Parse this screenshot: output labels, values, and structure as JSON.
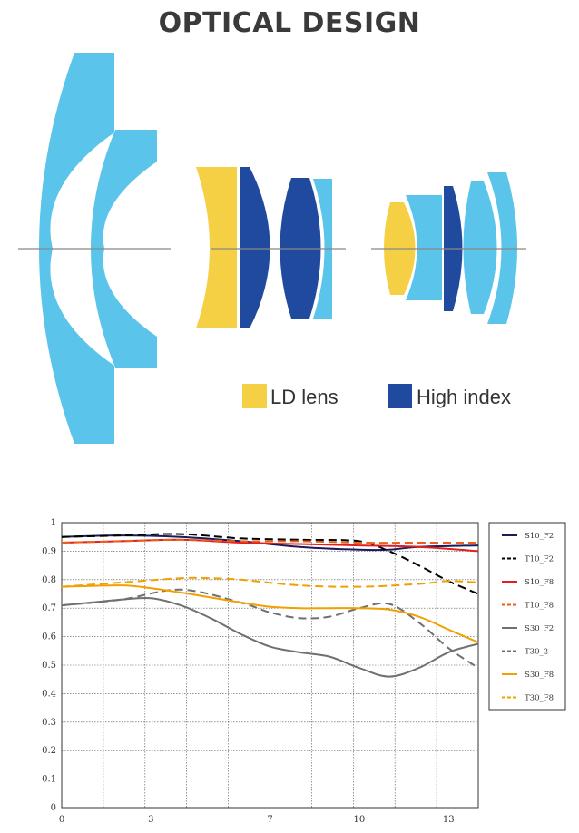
{
  "title": "OPTICAL DESIGN",
  "colors": {
    "light_blue": "#5BC4EA",
    "dark_blue": "#1F4A9E",
    "yellow": "#F5D044",
    "axis": "#888888"
  },
  "lens_legend": [
    {
      "label": "LD lens",
      "color": "#F5D044"
    },
    {
      "label": "High index",
      "color": "#1F4A9E"
    }
  ],
  "chart_data": {
    "type": "line",
    "y_ticks": [
      "0",
      "0.1",
      "0.2",
      "0.3",
      "0.4",
      "0.5",
      "0.6",
      "0.7",
      "0.8",
      "0.9",
      "1"
    ],
    "x_ticks": [
      "0",
      "3",
      "7",
      "10",
      "13"
    ],
    "ylim": [
      0,
      1
    ],
    "xlim": [
      0,
      14
    ],
    "grid": true,
    "legend_position": "right",
    "series": [
      {
        "name": "S10_F2",
        "color": "#1a1a5c",
        "dash": false,
        "x": [
          0,
          2,
          4,
          6,
          8,
          10,
          11,
          12,
          14
        ],
        "y": [
          0.95,
          0.955,
          0.95,
          0.935,
          0.915,
          0.905,
          0.905,
          0.915,
          0.92
        ]
      },
      {
        "name": "T10_F2",
        "color": "#000000",
        "dash": true,
        "x": [
          0,
          2,
          4,
          6,
          8,
          10,
          11,
          12,
          13,
          14
        ],
        "y": [
          0.95,
          0.955,
          0.96,
          0.945,
          0.94,
          0.935,
          0.9,
          0.85,
          0.795,
          0.75
        ]
      },
      {
        "name": "S10_F8",
        "color": "#e02020",
        "dash": false,
        "x": [
          0,
          2,
          4,
          6,
          8,
          10,
          12,
          14
        ],
        "y": [
          0.93,
          0.935,
          0.94,
          0.93,
          0.925,
          0.92,
          0.915,
          0.9
        ]
      },
      {
        "name": "T10_F8",
        "color": "#e8601a",
        "dash": true,
        "x": [
          0,
          2,
          4,
          6,
          8,
          10,
          12,
          14
        ],
        "y": [
          0.93,
          0.935,
          0.94,
          0.935,
          0.935,
          0.93,
          0.93,
          0.93
        ]
      },
      {
        "name": "S30_F2",
        "color": "#707070",
        "dash": false,
        "x": [
          0,
          1,
          2,
          3,
          4,
          5,
          6,
          7,
          8,
          9,
          10,
          11,
          12,
          13,
          14
        ],
        "y": [
          0.71,
          0.72,
          0.73,
          0.735,
          0.71,
          0.665,
          0.61,
          0.565,
          0.545,
          0.53,
          0.49,
          0.46,
          0.49,
          0.545,
          0.575
        ]
      },
      {
        "name": "T30_2",
        "color": "#707070",
        "dash": true,
        "x": [
          0,
          2,
          4,
          6,
          7,
          8,
          9,
          10,
          11,
          12,
          13,
          14
        ],
        "y": [
          0.71,
          0.73,
          0.765,
          0.72,
          0.685,
          0.665,
          0.67,
          0.7,
          0.715,
          0.65,
          0.56,
          0.49
        ]
      },
      {
        "name": "S30_F8",
        "color": "#f0a000",
        "dash": false,
        "x": [
          0,
          2,
          3,
          4,
          6,
          7,
          8,
          9,
          10,
          11,
          12,
          13,
          14
        ],
        "y": [
          0.775,
          0.78,
          0.77,
          0.755,
          0.72,
          0.705,
          0.7,
          0.7,
          0.7,
          0.695,
          0.67,
          0.625,
          0.58
        ]
      },
      {
        "name": "T30_F8",
        "color": "#f0a000",
        "dash": true,
        "x": [
          0,
          2,
          4,
          5,
          6,
          8,
          10,
          12,
          13,
          14
        ],
        "y": [
          0.775,
          0.79,
          0.805,
          0.805,
          0.8,
          0.78,
          0.775,
          0.785,
          0.795,
          0.79
        ]
      }
    ]
  }
}
